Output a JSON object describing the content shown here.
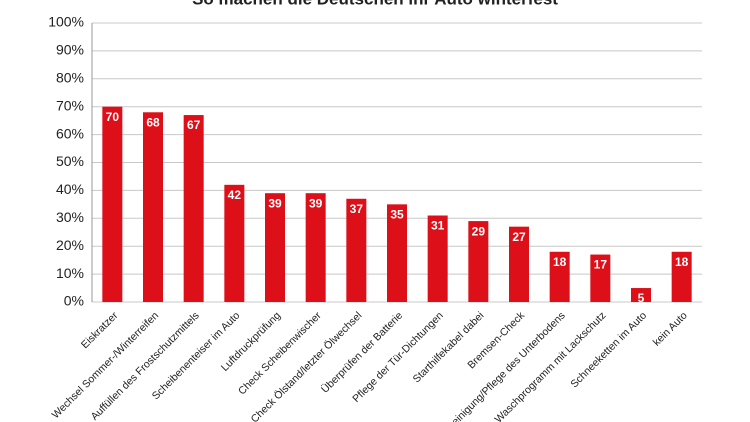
{
  "chart_data": {
    "type": "bar",
    "title": "So machen die Deutschen ihr Auto winterfest",
    "categories": [
      "Eiskratzer",
      "Wechsel Sommer-/Winterreifen",
      "Auffüllen des Frostschutzmittels",
      "Scheibenenteiser im Auto",
      "Luftdruckprüfung",
      "Check Scheibenwischer",
      "Check Ölstand/letzter Ölwechsel",
      "Überprüfen der Batterie",
      "Pflege der Tür-Dichtungen",
      "Starthilfekabel dabei",
      "Bremsen-Check",
      "Reinigung/Pflege des Unterbodens",
      "Waschprogramm mit Lackschutz",
      "Schneeketten im Auto",
      "kein Auto"
    ],
    "values": [
      70,
      68,
      67,
      42,
      39,
      39,
      37,
      35,
      31,
      29,
      27,
      18,
      17,
      5,
      18
    ],
    "color": "#dd0f19",
    "ylim": [
      0,
      100
    ],
    "yticks": [
      {
        "value": 0,
        "label": "0%"
      },
      {
        "value": 10,
        "label": "10%"
      },
      {
        "value": 20,
        "label": "20%"
      },
      {
        "value": 30,
        "label": "30%"
      },
      {
        "value": 40,
        "label": "40%"
      },
      {
        "value": 50,
        "label": "50%"
      },
      {
        "value": 60,
        "label": "60%"
      },
      {
        "value": 70,
        "label": "70%"
      },
      {
        "value": 80,
        "label": "80%"
      },
      {
        "value": 90,
        "label": "90%"
      },
      {
        "value": 100,
        "label": "100%"
      }
    ],
    "grid": true
  }
}
